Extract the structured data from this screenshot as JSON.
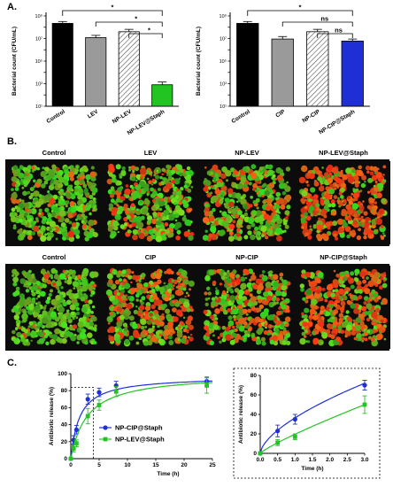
{
  "panels": {
    "a": "A.",
    "b": "B.",
    "c": "C."
  },
  "chart_data": [
    {
      "type": "bar",
      "ylabel": "Bacterial count (CFU/mL)",
      "yscale": "log",
      "ylim": [
        10,
        1000000000
      ],
      "yticks": [
        "10¹",
        "10³",
        "10⁵",
        "10⁷",
        "10⁹"
      ],
      "categories": [
        "Control",
        "LEV",
        "NP-LEV",
        "NP-LEV@Staph"
      ],
      "values": [
        220000000,
        12000000,
        40000000,
        800
      ],
      "errors": [
        100000000,
        7000000,
        25000000,
        600
      ],
      "significance": [
        {
          "from": 0,
          "to": 3,
          "label": "*"
        },
        {
          "from": 1,
          "to": 3,
          "label": "*"
        },
        {
          "from": 2,
          "to": 3,
          "label": "*"
        }
      ]
    },
    {
      "type": "bar",
      "ylabel": "Bacterial count (CFU/mL)",
      "yscale": "log",
      "ylim": [
        10,
        1000000000
      ],
      "yticks": [
        "10¹",
        "10³",
        "10⁵",
        "10⁷",
        "10⁹"
      ],
      "categories": [
        "Control",
        "CIP",
        "NP-CIP",
        "NP-CIP@Staph"
      ],
      "values": [
        220000000,
        9000000,
        40000000,
        6000000
      ],
      "errors": [
        100000000,
        6000000,
        25000000,
        3000000
      ],
      "significance": [
        {
          "from": 0,
          "to": 3,
          "label": "*"
        },
        {
          "from": 1,
          "to": 3,
          "label": "ns"
        },
        {
          "from": 2,
          "to": 3,
          "label": "ns"
        }
      ]
    },
    {
      "type": "line",
      "xlabel": "Time (h)",
      "ylabel": "Antibiotic release (%)",
      "xlim": [
        0,
        25
      ],
      "ylim": [
        0,
        100
      ],
      "xticks": [
        0,
        5,
        10,
        15,
        20,
        25
      ],
      "yticks": [
        0,
        20,
        40,
        60,
        80,
        100
      ],
      "series": [
        {
          "name": "NP-CIP@Staph",
          "color": "#1f2fd6",
          "x": [
            0,
            0.5,
            1,
            3,
            5,
            8,
            24
          ],
          "y": [
            0,
            22,
            34,
            70,
            78,
            86,
            91
          ],
          "err": [
            0,
            5,
            5,
            6,
            5,
            5,
            5
          ]
        },
        {
          "name": "NP-LEV@Staph",
          "color": "#22c422",
          "x": [
            0,
            0.5,
            1,
            3,
            5,
            8,
            24
          ],
          "y": [
            0,
            12,
            18,
            50,
            63,
            79,
            86
          ],
          "err": [
            0,
            4,
            4,
            9,
            6,
            6,
            9
          ]
        }
      ]
    },
    {
      "type": "line",
      "xlabel": "Time (h)",
      "ylabel": "Antibiotic release (%)",
      "xlim": [
        0,
        3
      ],
      "ylim": [
        0,
        80
      ],
      "xticks": [
        "0.0",
        "0.5",
        "1.0",
        "1.5",
        "2.0",
        "2.5",
        "3.0"
      ],
      "yticks": [
        0,
        20,
        40,
        60,
        80
      ],
      "series": [
        {
          "name": "NP-CIP@Staph",
          "color": "#1f2fd6",
          "x": [
            0,
            0.5,
            1,
            3
          ],
          "y": [
            0,
            23,
            35,
            70
          ],
          "err": [
            0,
            6,
            5,
            5
          ]
        },
        {
          "name": "NP-LEV@Staph",
          "color": "#22c422",
          "x": [
            0,
            0.5,
            1,
            3
          ],
          "y": [
            0,
            11,
            17,
            50
          ],
          "err": [
            0,
            3,
            3,
            9
          ]
        }
      ]
    }
  ],
  "images": {
    "row1": [
      "Control",
      "LEV",
      "NP-LEV",
      "NP-LEV@Staph"
    ],
    "row2": [
      "Control",
      "CIP",
      "NP-CIP",
      "NP-CIP@Staph"
    ],
    "tile_red_ratio": {
      "row1": [
        0.1,
        0.35,
        0.3,
        0.75
      ],
      "row2": [
        0.08,
        0.45,
        0.4,
        0.6
      ]
    }
  }
}
